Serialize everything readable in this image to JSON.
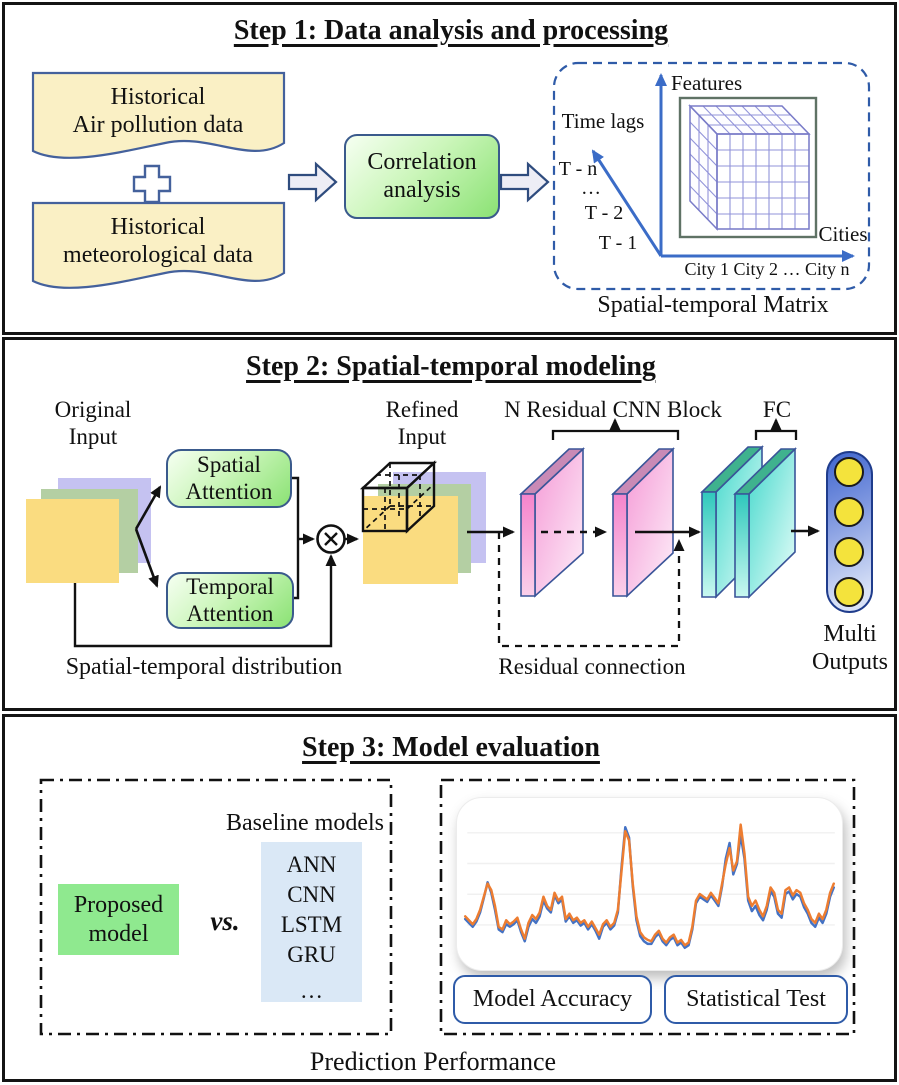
{
  "colors": {
    "panel_border": "#141414",
    "doc_fill": "#faf0c5",
    "doc_border": "#44619c",
    "green_box_light": "#f6fff2",
    "green_box_dark": "#8be274",
    "box_border": "#3a5a8c",
    "block_arrow_fill": "#ededf5",
    "axis_blue": "#3b6cc7",
    "dashed_box_blue": "#2f5ba8",
    "cube_grid_purple": "#9193d9",
    "stack_lavender": "#c5c2f1",
    "stack_green": "#b4cfa3",
    "stack_yellow": "#fadc80",
    "slab_pink": "#f59ad6",
    "slab_teal": "#45d8cc",
    "capsule_blue": "#4066ce",
    "node_yellow": "#f4e33c",
    "proposed_green": "#8fe98f",
    "baseline_panel_blue": "#dae8f6",
    "series_blue": "#4472C4",
    "series_orange": "#ED7D31"
  },
  "step1": {
    "title": "Step 1:  Data analysis and processing",
    "doc1_line1": "Historical",
    "doc1_line2": "Air pollution data",
    "doc2_line1": "Historical",
    "doc2_line2": "meteorological data",
    "correlation_line1": "Correlation",
    "correlation_line2": "analysis",
    "matrix": {
      "features_label": "Features",
      "time_lags_label": "Time lags",
      "tick_tn": "T - n",
      "tick_dots": "…",
      "tick_t2": "T - 2",
      "tick_t1": "T - 1",
      "cities_label": "Cities",
      "cities_ticks": "City 1 City 2  …   City n",
      "caption": "Spatial-temporal Matrix"
    }
  },
  "step2": {
    "title": "Step 2:  Spatial-temporal modeling",
    "original_line1": "Original",
    "original_line2": "Input",
    "spatial_line1": "Spatial",
    "spatial_line2": "Attention",
    "temporal_line1": "Temporal",
    "temporal_line2": "Attention",
    "refined_line1": "Refined",
    "refined_line2": "Input",
    "distribution_label": "Spatial-temporal distribution",
    "cnn_block_label": "N Residual CNN Block",
    "fc_label": "FC",
    "residual_label": "Residual connection",
    "multi_line1": "Multi",
    "multi_line2": "Outputs"
  },
  "step3": {
    "title": "Step 3:  Model evaluation",
    "baseline_label": "Baseline models",
    "proposed_line1": "Proposed",
    "proposed_line2": "model",
    "vs_label": "vs.",
    "baseline_models": [
      "ANN",
      "CNN",
      "LSTM",
      "GRU",
      "…"
    ],
    "button_accuracy": "Model Accuracy",
    "button_statistical": "Statistical Test",
    "caption": "Prediction Performance"
  },
  "chart_data": {
    "type": "line",
    "title": "",
    "xlabel": "",
    "ylabel": "",
    "n_points": 100,
    "ylim": [
      0,
      100
    ],
    "grid": "faint horizontal gridlines only",
    "legend": "none",
    "note": "two closely tracking time series, no visible axes or tick labels",
    "series": [
      {
        "name": "blue",
        "color": "#4472C4",
        "values": [
          28,
          25,
          22,
          26,
          33,
          44,
          56,
          48,
          35,
          20,
          18,
          24,
          22,
          24,
          27,
          18,
          11,
          22,
          28,
          25,
          30,
          42,
          36,
          33,
          46,
          40,
          43,
          26,
          30,
          25,
          27,
          23,
          25,
          20,
          24,
          19,
          13,
          22,
          25,
          20,
          23,
          33,
          68,
          98,
          90,
          53,
          27,
          15,
          11,
          9,
          9,
          14,
          17,
          11,
          8,
          12,
          14,
          8,
          10,
          6,
          8,
          20,
          40,
          45,
          43,
          41,
          46,
          42,
          38,
          53,
          74,
          86,
          62,
          70,
          92,
          74,
          42,
          34,
          38,
          31,
          27,
          35,
          49,
          45,
          32,
          29,
          47,
          49,
          43,
          47,
          45,
          37,
          32,
          25,
          22,
          29,
          25,
          32,
          45,
          52
        ]
      },
      {
        "name": "orange",
        "color": "#ED7D31",
        "values": [
          30,
          27,
          24,
          28,
          35,
          45,
          55,
          50,
          38,
          22,
          20,
          27,
          24,
          26,
          29,
          20,
          13,
          25,
          31,
          28,
          33,
          45,
          38,
          35,
          48,
          42,
          45,
          28,
          32,
          27,
          29,
          25,
          27,
          22,
          26,
          21,
          16,
          24,
          27,
          22,
          25,
          35,
          65,
          95,
          88,
          55,
          30,
          18,
          14,
          12,
          11,
          16,
          19,
          13,
          10,
          14,
          16,
          10,
          12,
          8,
          10,
          22,
          42,
          47,
          45,
          43,
          48,
          44,
          40,
          55,
          70,
          82,
          65,
          72,
          100,
          78,
          45,
          38,
          42,
          35,
          30,
          38,
          52,
          48,
          35,
          32,
          50,
          52,
          46,
          50,
          48,
          40,
          35,
          28,
          25,
          32,
          28,
          35,
          48,
          55
        ]
      }
    ]
  }
}
